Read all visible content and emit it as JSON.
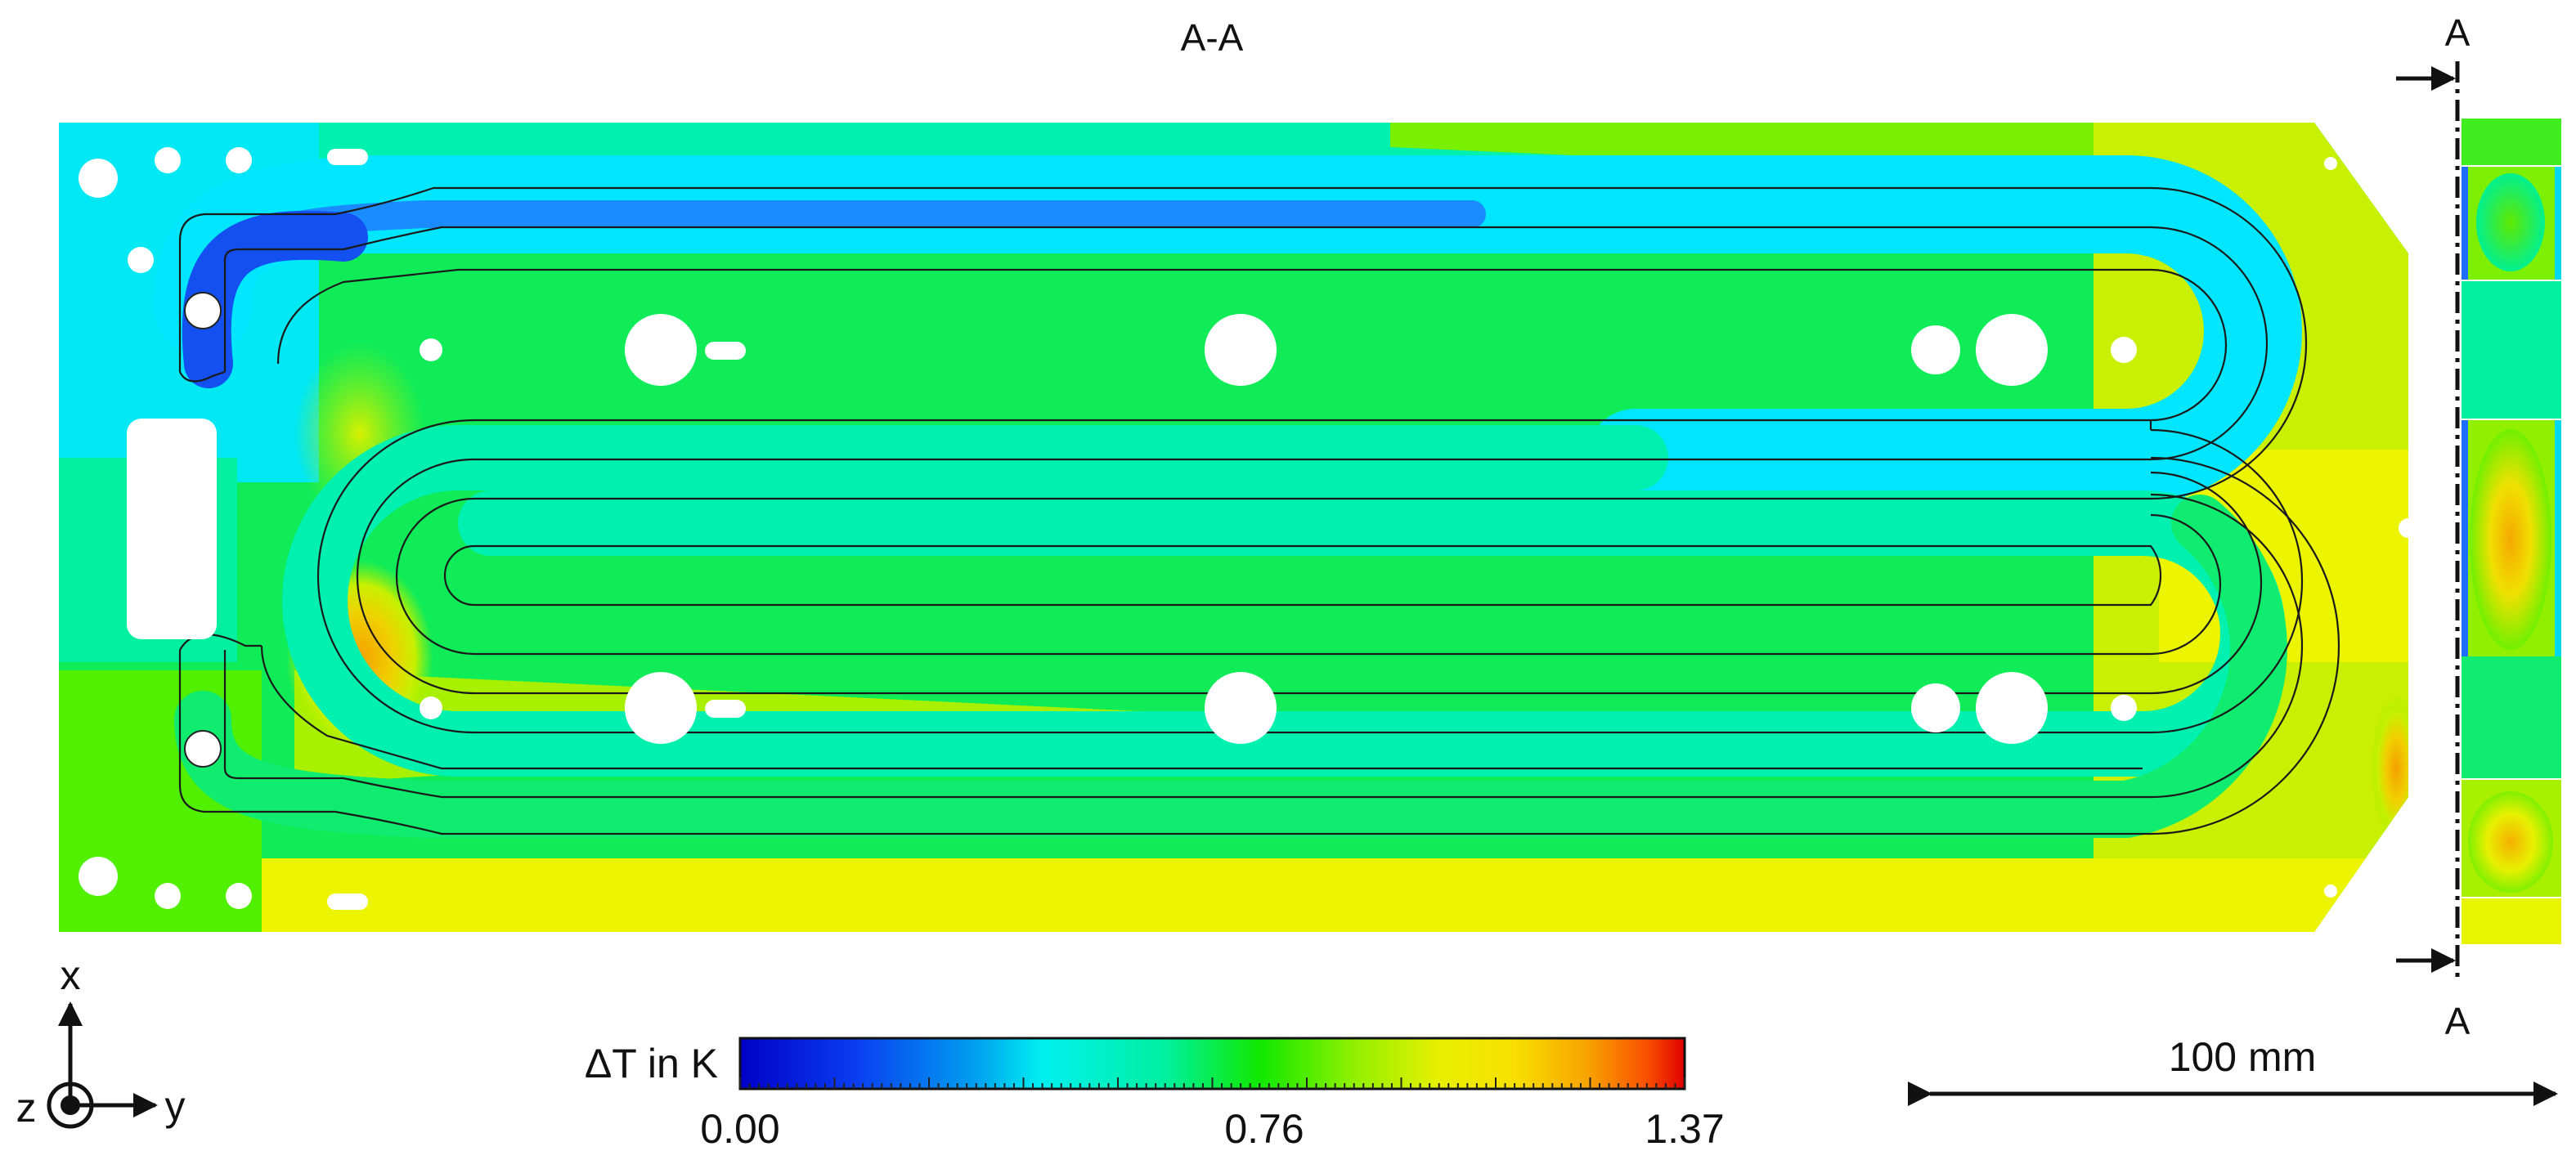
{
  "section_title": "A-A",
  "section_marker_top": "A",
  "section_marker_bottom": "A",
  "colorbar": {
    "label": "ΔT in K",
    "min_label": "0.00",
    "mid_label": "0.76",
    "max_label": "1.37",
    "min_value": 0.0,
    "mid_value": 0.76,
    "max_value": 1.37,
    "colormap": [
      "#0000c8",
      "#0a3cf0",
      "#00a0f0",
      "#00f0f0",
      "#00f0a0",
      "#10e800",
      "#90f000",
      "#e8f000",
      "#f8e000",
      "#f8a000",
      "#f85000",
      "#e00000"
    ]
  },
  "scale_bar": {
    "label": "100 mm"
  },
  "axes": {
    "x": "x",
    "y": "y",
    "z": "z"
  },
  "field_colors": {
    "cold": "#1e6eff",
    "cool": "#00e6ff",
    "mid": "#00f08c",
    "green": "#3cf000",
    "warm_green": "#a0f000",
    "yellow": "#ecf400",
    "orange": "#f5a800"
  }
}
